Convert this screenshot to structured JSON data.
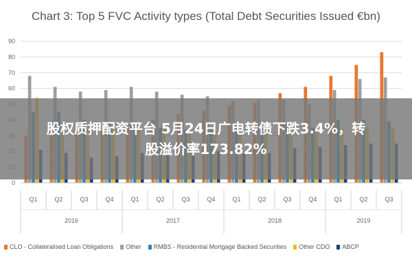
{
  "chart_data": {
    "type": "bar",
    "title": "Chart 3: Top 5 FVC Activity types (Total Debt Securities Issued €bn)",
    "ylim": [
      0,
      90
    ],
    "yticks": [
      "0",
      "10",
      "20",
      "30",
      "40",
      "50",
      "60",
      "70",
      "80",
      "90"
    ],
    "categories": [
      "Q1",
      "Q2",
      "Q3",
      "Q4",
      "Q1",
      "Q2",
      "Q3",
      "Q4",
      "Q1",
      "Q2",
      "Q3",
      "Q4",
      "Q1",
      "Q2",
      "Q3"
    ],
    "groups": [
      {
        "label": "2016",
        "start": 0,
        "count": 4
      },
      {
        "label": "2017",
        "start": 4,
        "count": 4
      },
      {
        "label": "2018",
        "start": 8,
        "count": 4
      },
      {
        "label": "2019",
        "start": 12,
        "count": 3
      }
    ],
    "grid": true,
    "legend_position": "bottom",
    "series": [
      {
        "name": "CLO - Collateralised Loan Obligations",
        "color": "#E8782A",
        "values": [
          30,
          31,
          32,
          33,
          37,
          40,
          44,
          46,
          49,
          51,
          57,
          61,
          68,
          75,
          83
        ]
      },
      {
        "name": "Other",
        "color": "#9E9E9E",
        "values": [
          68,
          61,
          58,
          59,
          61,
          58,
          56,
          55,
          52,
          53,
          53,
          50,
          59,
          66,
          67
        ]
      },
      {
        "name": "RMBS - Residential Mortgage Backed Securities",
        "color": "#2E86B8",
        "values": [
          45,
          45,
          40,
          38,
          36,
          35,
          34,
          34,
          38,
          37,
          37,
          35,
          40,
          40,
          39
        ]
      },
      {
        "name": "Other CDO",
        "color": "#F2B81B",
        "values": [
          54,
          35,
          34,
          36,
          35,
          34,
          33,
          33,
          32,
          32,
          33,
          35,
          34,
          36,
          35
        ]
      },
      {
        "name": "ABCP",
        "color": "#1F3E7A",
        "values": [
          21,
          19,
          16,
          17,
          19,
          18,
          18,
          20,
          19,
          19,
          22,
          23,
          24,
          25,
          25
        ]
      }
    ]
  },
  "overlay": {
    "line1": "股权质押配资平台 5月24日广电转债下跌3.4%，转",
    "line2": "股溢价率173.82%"
  }
}
